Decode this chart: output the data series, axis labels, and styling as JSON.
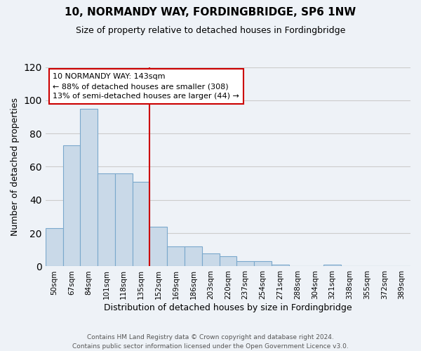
{
  "title": "10, NORMANDY WAY, FORDINGBRIDGE, SP6 1NW",
  "subtitle": "Size of property relative to detached houses in Fordingbridge",
  "xlabel": "Distribution of detached houses by size in Fordingbridge",
  "ylabel": "Number of detached properties",
  "bar_labels": [
    "50sqm",
    "67sqm",
    "84sqm",
    "101sqm",
    "118sqm",
    "135sqm",
    "152sqm",
    "169sqm",
    "186sqm",
    "203sqm",
    "220sqm",
    "237sqm",
    "254sqm",
    "271sqm",
    "288sqm",
    "304sqm",
    "321sqm",
    "338sqm",
    "355sqm",
    "372sqm",
    "389sqm"
  ],
  "bar_values": [
    23,
    73,
    95,
    56,
    56,
    51,
    24,
    12,
    12,
    8,
    6,
    3,
    3,
    1,
    0,
    0,
    1,
    0,
    0,
    0,
    0
  ],
  "bar_color": "#c9d9e8",
  "bar_edgecolor": "#7aa8cc",
  "ylim": [
    0,
    120
  ],
  "yticks": [
    0,
    20,
    40,
    60,
    80,
    100,
    120
  ],
  "annotation_text": "10 NORMANDY WAY: 143sqm\n← 88% of detached houses are smaller (308)\n13% of semi-detached houses are larger (44) →",
  "annotation_box_color": "#ffffff",
  "annotation_box_edgecolor": "#cc0000",
  "vline_color": "#cc0000",
  "footer_text": "Contains HM Land Registry data © Crown copyright and database right 2024.\nContains public sector information licensed under the Open Government Licence v3.0.",
  "background_color": "#eef2f7",
  "title_fontsize": 11,
  "subtitle_fontsize": 9,
  "ylabel_fontsize": 9,
  "xlabel_fontsize": 9
}
